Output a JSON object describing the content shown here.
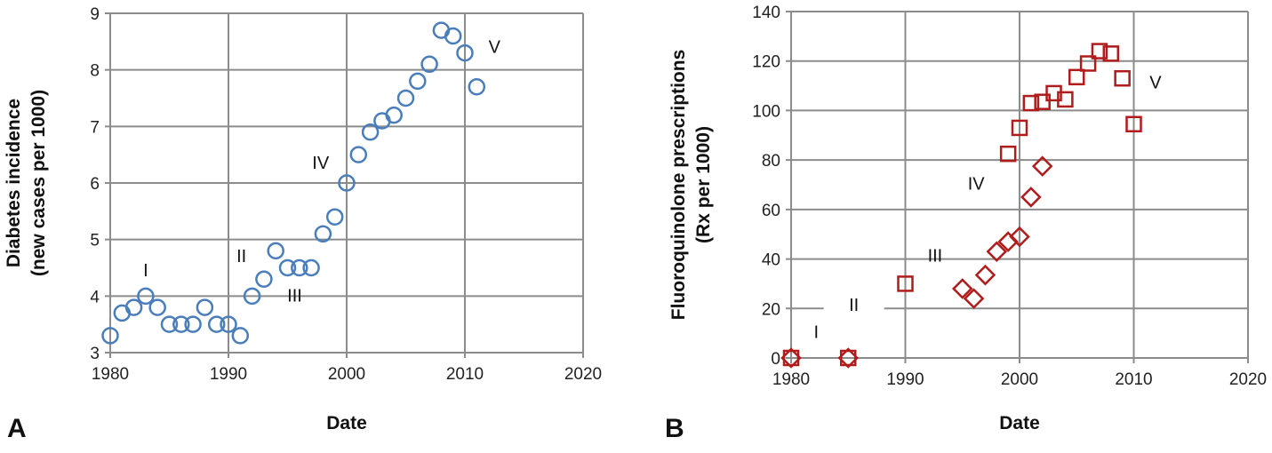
{
  "chart_data": [
    {
      "panel": "A",
      "type": "scatter",
      "xlabel": "Date",
      "ylabel": [
        "Diabetes incidence",
        "(new cases per 1000)"
      ],
      "xlim": [
        1980,
        2020
      ],
      "ylim": [
        3,
        9
      ],
      "xticks": [
        1980,
        1990,
        2000,
        2010,
        2020
      ],
      "yticks": [
        3,
        4,
        5,
        6,
        7,
        8,
        9
      ],
      "grid": true,
      "series": [
        {
          "name": "Diabetes incidence",
          "marker": "circle",
          "color": "#4a7ebb",
          "x": [
            1980,
            1981,
            1982,
            1983,
            1984,
            1985,
            1986,
            1987,
            1988,
            1989,
            1990,
            1991,
            1992,
            1993,
            1994,
            1995,
            1996,
            1997,
            1998,
            1999,
            2000,
            2001,
            2002,
            2003,
            2004,
            2005,
            2006,
            2007,
            2008,
            2009,
            2010,
            2011
          ],
          "y": [
            3.3,
            3.7,
            3.8,
            4.0,
            3.8,
            3.5,
            3.5,
            3.5,
            3.8,
            3.5,
            3.5,
            3.3,
            4.0,
            4.3,
            4.8,
            4.5,
            4.5,
            4.5,
            5.1,
            5.4,
            6.0,
            6.5,
            6.9,
            7.1,
            7.2,
            7.5,
            7.8,
            8.1,
            8.7,
            8.6,
            8.3,
            7.7
          ]
        }
      ],
      "annotations": [
        {
          "text": "I",
          "x": 1983,
          "y": 4.35
        },
        {
          "text": "II",
          "x": 1991.1,
          "y": 4.6
        },
        {
          "text": "III",
          "x": 1995.6,
          "y": 3.9
        },
        {
          "text": "IV",
          "x": 1997.8,
          "y": 6.25
        },
        {
          "text": "V",
          "x": 2012.5,
          "y": 8.3
        }
      ]
    },
    {
      "panel": "B",
      "type": "scatter",
      "xlabel": "Date",
      "ylabel": [
        "Fluoroquinolone prescriptions",
        "(Rx per 1000)"
      ],
      "xlim": [
        1980,
        2020
      ],
      "ylim": [
        0,
        140
      ],
      "xticks": [
        1980,
        1990,
        2000,
        2010,
        2020
      ],
      "yticks": [
        0,
        20,
        40,
        60,
        80,
        100,
        120,
        140
      ],
      "grid": true,
      "series": [
        {
          "name": "Squares",
          "marker": "square",
          "color": "#b01c1c",
          "x": [
            1980,
            1985,
            1990,
            1999,
            2000,
            2001,
            2002,
            2003,
            2004,
            2005,
            2006,
            2007,
            2008,
            2009,
            2010
          ],
          "y": [
            0,
            0,
            30,
            82.5,
            93,
            103,
            103.5,
            107,
            104.5,
            113.5,
            119,
            124,
            123,
            113,
            94.5
          ]
        },
        {
          "name": "Diamonds",
          "marker": "diamond",
          "color": "#b01c1c",
          "x": [
            1980,
            1985,
            1995,
            1996,
            1997,
            1998,
            1999,
            2000,
            2001,
            2002
          ],
          "y": [
            0,
            0,
            28,
            24,
            33.5,
            43,
            47,
            49,
            65,
            77.5
          ]
        }
      ],
      "annotations": [
        {
          "text": "I",
          "x": 1982.2,
          "y": 8
        },
        {
          "text": "II",
          "x": 1985.5,
          "y": 19,
          "mask": true
        },
        {
          "text": "III",
          "x": 1992.6,
          "y": 39
        },
        {
          "text": "IV",
          "x": 1996.2,
          "y": 68
        },
        {
          "text": "V",
          "x": 2011.9,
          "y": 109
        }
      ]
    }
  ]
}
